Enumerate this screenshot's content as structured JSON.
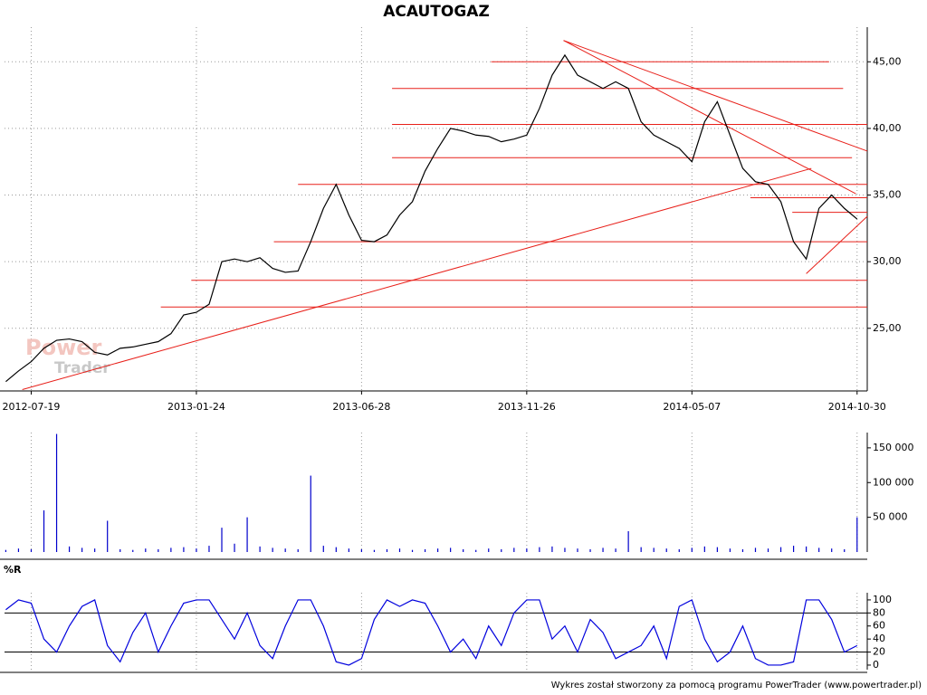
{
  "chart_data": [
    {
      "type": "line",
      "title": "ACAUTOGAZ",
      "watermark": [
        "Power",
        "Trader"
      ],
      "color": "#000000",
      "xlim": [
        -21,
        658
      ],
      "xticks": [
        {
          "value": 0,
          "label": "2012-07-19"
        },
        {
          "value": 130,
          "label": "2013-01-24"
        },
        {
          "value": 260,
          "label": "2013-06-28"
        },
        {
          "value": 390,
          "label": "2013-11-26"
        },
        {
          "value": 520,
          "label": "2014-05-07"
        },
        {
          "value": 650,
          "label": "2014-10-30"
        }
      ],
      "ylim": [
        20.3,
        47.6
      ],
      "yticks": [
        {
          "value": 25,
          "label": "25,00"
        },
        {
          "value": 30,
          "label": "30,00"
        },
        {
          "value": 35,
          "label": "35,00"
        },
        {
          "value": 40,
          "label": "40,00"
        },
        {
          "value": 45,
          "label": "45,00"
        }
      ],
      "grid": true,
      "x": [
        -20,
        -10,
        0,
        10,
        20,
        30,
        40,
        50,
        60,
        70,
        80,
        90,
        100,
        110,
        120,
        130,
        140,
        150,
        160,
        170,
        180,
        190,
        200,
        210,
        220,
        230,
        240,
        250,
        260,
        270,
        280,
        290,
        300,
        310,
        320,
        330,
        340,
        350,
        360,
        370,
        380,
        390,
        400,
        410,
        420,
        430,
        440,
        450,
        460,
        470,
        480,
        490,
        500,
        510,
        520,
        530,
        540,
        550,
        560,
        570,
        580,
        590,
        600,
        610,
        620,
        630,
        640,
        650
      ],
      "values": [
        21.0,
        21.8,
        22.5,
        23.5,
        24.1,
        24.2,
        24.0,
        23.2,
        23.0,
        23.5,
        23.6,
        23.8,
        24.0,
        24.6,
        26.0,
        26.2,
        26.8,
        30.0,
        30.2,
        30.0,
        30.3,
        29.5,
        29.2,
        29.3,
        31.5,
        34.0,
        35.8,
        33.5,
        31.6,
        31.5,
        32.0,
        33.5,
        34.5,
        36.8,
        38.5,
        40.0,
        39.8,
        39.5,
        39.4,
        39.0,
        39.2,
        39.5,
        41.5,
        44.0,
        45.5,
        44.0,
        43.5,
        43.0,
        43.5,
        43.0,
        40.5,
        39.5,
        39.0,
        38.5,
        37.5,
        40.5,
        42.0,
        39.5,
        37.0,
        36.0,
        35.8,
        34.5,
        31.5,
        30.2,
        34.0,
        35.0,
        34.0,
        33.2
      ],
      "trend_color": "#e8201a",
      "trend_lines": [
        [
          362,
          45,
          628,
          45
        ],
        [
          284,
          43,
          639,
          43
        ],
        [
          284,
          40.3,
          658,
          40.3
        ],
        [
          284,
          37.8,
          646,
          37.8
        ],
        [
          210,
          35.8,
          658,
          35.8
        ],
        [
          566,
          34.8,
          658,
          34.8
        ],
        [
          599,
          33.7,
          658,
          33.7
        ],
        [
          191,
          31.5,
          658,
          31.5
        ],
        [
          126,
          28.6,
          658,
          28.6
        ],
        [
          102,
          26.6,
          658,
          26.6
        ],
        [
          -7,
          20.4,
          614,
          37.0
        ],
        [
          419,
          46.6,
          658,
          38.3
        ],
        [
          419,
          46.6,
          649,
          35.1
        ],
        [
          610,
          29.1,
          658,
          33.4
        ]
      ]
    },
    {
      "type": "bar",
      "color": "#0000cc",
      "xlim": [
        -21,
        658
      ],
      "ylim": [
        0,
        172000
      ],
      "yticks": [
        {
          "value": 50000,
          "label": "50 000"
        },
        {
          "value": 100000,
          "label": "100 000"
        },
        {
          "value": 150000,
          "label": "150 000"
        }
      ],
      "x": [
        -20,
        -10,
        0,
        10,
        20,
        30,
        40,
        50,
        60,
        70,
        80,
        90,
        100,
        110,
        120,
        130,
        140,
        150,
        160,
        170,
        180,
        190,
        200,
        210,
        220,
        230,
        240,
        250,
        260,
        270,
        280,
        290,
        300,
        310,
        320,
        330,
        340,
        350,
        360,
        370,
        380,
        390,
        400,
        410,
        420,
        430,
        440,
        450,
        460,
        470,
        480,
        490,
        500,
        510,
        520,
        530,
        540,
        550,
        560,
        570,
        580,
        590,
        600,
        610,
        620,
        630,
        640,
        650
      ],
      "values": [
        3000,
        5000,
        4000,
        60000,
        170000,
        8000,
        6000,
        5000,
        45000,
        4000,
        3000,
        5000,
        4000,
        6000,
        7000,
        5000,
        9000,
        35000,
        12000,
        50000,
        8000,
        6000,
        5000,
        4000,
        110000,
        9000,
        7000,
        5000,
        4000,
        3000,
        4000,
        5000,
        3000,
        4000,
        5000,
        6000,
        4000,
        3000,
        5000,
        4000,
        6000,
        5000,
        7000,
        8000,
        6000,
        5000,
        4000,
        6000,
        5000,
        30000,
        7000,
        6000,
        5000,
        4000,
        6000,
        8000,
        7000,
        5000,
        4000,
        6000,
        5000,
        7000,
        9000,
        8000,
        6000,
        5000,
        4000,
        50000
      ]
    },
    {
      "type": "line",
      "title": "%R",
      "color": "#0000dd",
      "xlim": [
        -21,
        658
      ],
      "ylim": [
        -7,
        111
      ],
      "yticks": [
        0,
        20,
        40,
        60,
        80,
        100
      ],
      "hlines": [
        20,
        80
      ],
      "x": [
        -20,
        -10,
        0,
        10,
        20,
        30,
        40,
        50,
        60,
        70,
        80,
        90,
        100,
        110,
        120,
        130,
        140,
        150,
        160,
        170,
        180,
        190,
        200,
        210,
        220,
        230,
        240,
        250,
        260,
        270,
        280,
        290,
        300,
        310,
        320,
        330,
        340,
        350,
        360,
        370,
        380,
        390,
        400,
        410,
        420,
        430,
        440,
        450,
        460,
        470,
        480,
        490,
        500,
        510,
        520,
        530,
        540,
        550,
        560,
        570,
        580,
        590,
        600,
        610,
        620,
        630,
        640,
        650
      ],
      "values": [
        85,
        100,
        95,
        40,
        20,
        60,
        90,
        100,
        30,
        5,
        50,
        80,
        20,
        60,
        95,
        100,
        100,
        70,
        40,
        80,
        30,
        10,
        60,
        100,
        100,
        60,
        5,
        0,
        10,
        70,
        100,
        90,
        100,
        95,
        60,
        20,
        40,
        10,
        60,
        30,
        80,
        100,
        100,
        40,
        60,
        20,
        70,
        50,
        10,
        20,
        30,
        60,
        10,
        90,
        100,
        40,
        5,
        20,
        60,
        10,
        0,
        0,
        5,
        100,
        100,
        70,
        20,
        30
      ]
    }
  ],
  "footer": "Wykres został stworzony za pomocą programu PowerTrader (www.powertrader.pl)"
}
